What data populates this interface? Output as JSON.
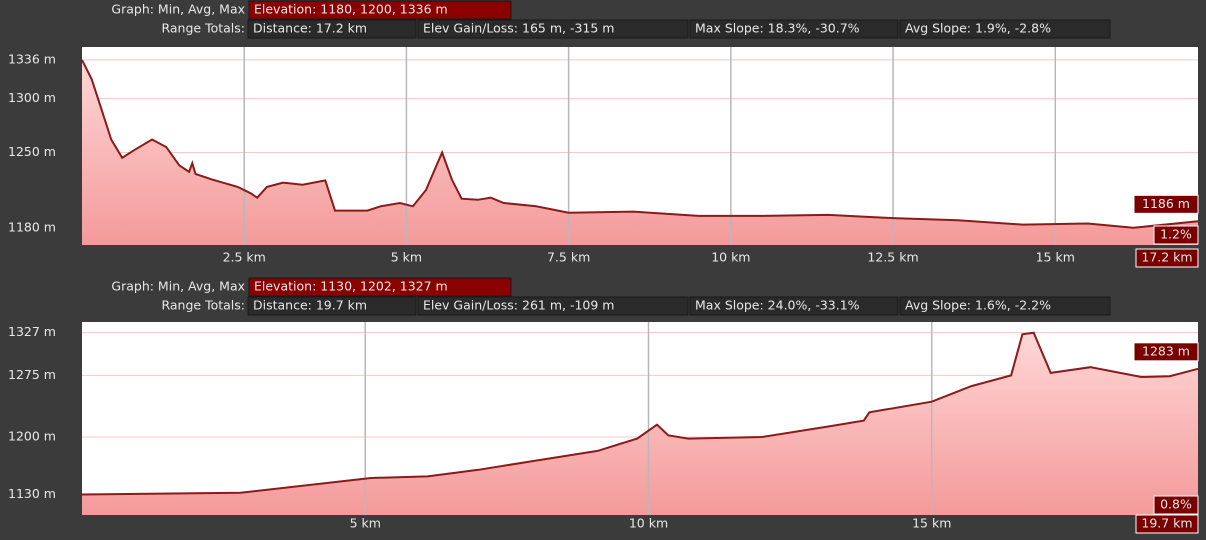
{
  "chart_data": [
    {
      "type": "area",
      "color": "#8b1a1a",
      "header": {
        "graph_label": "Graph: Min, Avg, Max",
        "elevation": "Elevation: 1180, 1200, 1336 m",
        "range_label": "Range Totals:",
        "distance": "Distance: 17.2 km",
        "elev_gain_loss": "Elev Gain/Loss: 165 m, -315 m",
        "max_slope": "Max Slope: 18.3%, -30.7%",
        "avg_slope": "Avg Slope: 1.9%, -2.8%"
      },
      "badges": {
        "elevation": "1186 m",
        "slope": "1.2%",
        "distance": "17.2 km"
      },
      "x": [
        0,
        0.15,
        0.3,
        0.45,
        0.62,
        0.8,
        1.08,
        1.3,
        1.5,
        1.65,
        1.7,
        1.75,
        2.0,
        2.4,
        2.6,
        2.7,
        2.85,
        3.1,
        3.4,
        3.75,
        3.9,
        4.4,
        4.6,
        4.9,
        5.1,
        5.3,
        5.55,
        5.7,
        5.85,
        6.1,
        6.3,
        6.5,
        7.0,
        7.5,
        8.5,
        9.5,
        10.5,
        11.5,
        12.5,
        13.5,
        14.5,
        15.5,
        16.2,
        17.2
      ],
      "values": [
        1336,
        1318,
        1290,
        1262,
        1245,
        1252,
        1262,
        1255,
        1238,
        1232,
        1240,
        1230,
        1225,
        1218,
        1212,
        1208,
        1218,
        1222,
        1220,
        1224,
        1196,
        1196,
        1200,
        1203,
        1200,
        1215,
        1250,
        1225,
        1207,
        1206,
        1208,
        1203,
        1200,
        1194,
        1195,
        1191,
        1191,
        1192,
        1189,
        1187,
        1183,
        1184,
        1180,
        1186
      ],
      "xlim": [
        0,
        17.2
      ],
      "xticks": [
        {
          "value": 2.5,
          "label": "2.5 km"
        },
        {
          "value": 5,
          "label": "5 km"
        },
        {
          "value": 7.5,
          "label": "7.5 km"
        },
        {
          "value": 10,
          "label": "10 km"
        },
        {
          "value": 12.5,
          "label": "12.5 km"
        },
        {
          "value": 15,
          "label": "15 km"
        }
      ],
      "ylim": [
        1164,
        1348
      ],
      "yticks": [
        {
          "value": 1180,
          "label": "1180 m"
        },
        {
          "value": 1250,
          "label": "1250 m"
        },
        {
          "value": 1300,
          "label": "1300 m"
        },
        {
          "value": 1336,
          "label": "1336 m"
        }
      ],
      "grid": true
    },
    {
      "type": "area",
      "color": "#8b1a1a",
      "header": {
        "graph_label": "Graph: Min, Avg, Max",
        "elevation": "Elevation: 1130, 1202, 1327 m",
        "range_label": "Range Totals:",
        "distance": "Distance: 19.7 km",
        "elev_gain_loss": "Elev Gain/Loss: 261 m, -109 m",
        "max_slope": "Max Slope: 24.0%, -33.1%",
        "avg_slope": "Avg Slope: 1.6%, -2.2%"
      },
      "badges": {
        "elevation": "1283 m",
        "slope": "0.8%",
        "distance": "19.7 km"
      },
      "x": [
        0,
        2.8,
        5.1,
        6.1,
        7.0,
        7.9,
        9.1,
        9.8,
        10.15,
        10.35,
        10.7,
        12.0,
        13.2,
        13.8,
        13.9,
        15.0,
        15.7,
        16.4,
        16.6,
        16.8,
        17.1,
        17.8,
        18.7,
        19.2,
        19.7
      ],
      "values": [
        1130,
        1132,
        1150,
        1152,
        1160,
        1170,
        1183,
        1198,
        1215,
        1202,
        1198,
        1200,
        1213,
        1220,
        1230,
        1243,
        1262,
        1275,
        1325,
        1327,
        1278,
        1285,
        1273,
        1274,
        1283
      ],
      "xlim": [
        0,
        19.7
      ],
      "xticks": [
        {
          "value": 5,
          "label": "5 km"
        },
        {
          "value": 10,
          "label": "10 km"
        },
        {
          "value": 15,
          "label": "15 km"
        }
      ],
      "ylim": [
        1105,
        1340
      ],
      "yticks": [
        {
          "value": 1130,
          "label": "1130 m"
        },
        {
          "value": 1200,
          "label": "1200 m"
        },
        {
          "value": 1275,
          "label": "1275 m"
        },
        {
          "value": 1327,
          "label": "1327 m"
        }
      ],
      "grid": true
    }
  ]
}
